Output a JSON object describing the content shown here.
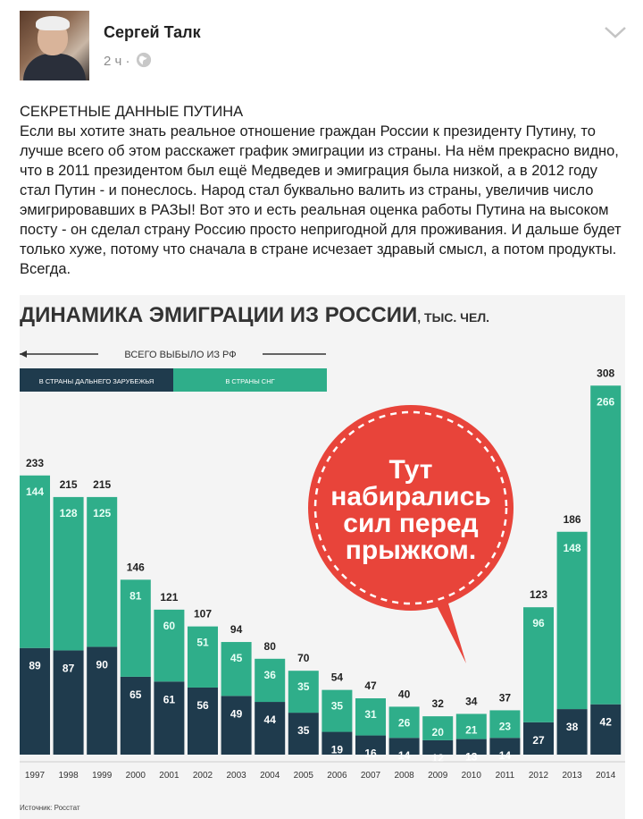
{
  "post": {
    "author": "Сергей Талк",
    "time": "2 ч ·",
    "heading": "СЕКРЕТНЫЕ ДАННЫЕ ПУТИНА",
    "body": "Если вы хотите знать реальное отношение граждан России к президенту Путину, то лучше всего об этом расскажет график эмиграции из страны. На нём прекрасно видно, что в 2011 президентом был ещё Медведев и эмиграция была низкой, а в 2012 году стал Путин - и понеслось. Народ стал буквально валить из страны, увеличив число эмигрировавших в РАЗЫ! Вот это и есть реальная оценка работы Путина на высоком посту - он сделал страну Россию просто непригодной для проживания. И дальше будет только хуже, потому что сначала в стране исчезает здравый смысл, а потом продукты. Всегда."
  },
  "icons": {
    "globe": "globe-icon",
    "menu": "chevron-down-icon"
  },
  "chart_data": {
    "type": "bar",
    "title": "ДИНАМИКА ЭМИГРАЦИИ ИЗ РОССИИ",
    "title_unit": ", ТЫС. ЧЕЛ.",
    "legend_total": "ВСЕГО ВЫБЫЛО ИЗ РФ",
    "categories": [
      "1997",
      "1998",
      "1999",
      "2000",
      "2001",
      "2002",
      "2003",
      "2004",
      "2005",
      "2006",
      "2007",
      "2008",
      "2009",
      "2010",
      "2011",
      "2012",
      "2013",
      "2014"
    ],
    "totals": [
      233,
      215,
      215,
      146,
      121,
      107,
      94,
      80,
      70,
      54,
      47,
      40,
      32,
      34,
      37,
      123,
      186,
      308
    ],
    "series": [
      {
        "name": "В СТРАНЫ ДАЛЬНЕГО ЗАРУБЕЖЬЯ",
        "values": [
          89,
          87,
          90,
          65,
          61,
          56,
          49,
          44,
          35,
          19,
          16,
          14,
          12,
          13,
          14,
          27,
          38,
          42
        ],
        "color": "#1f3b4d"
      },
      {
        "name": "В СТРАНЫ СНГ",
        "values": [
          144,
          128,
          125,
          81,
          60,
          51,
          45,
          36,
          35,
          35,
          31,
          26,
          20,
          21,
          23,
          96,
          148,
          266
        ],
        "color": "#2fae8a"
      }
    ],
    "ylim": [
      0,
      320
    ],
    "annotation": "Тут набирались сил перед прыжком.",
    "source": "Источник: Росстат"
  }
}
